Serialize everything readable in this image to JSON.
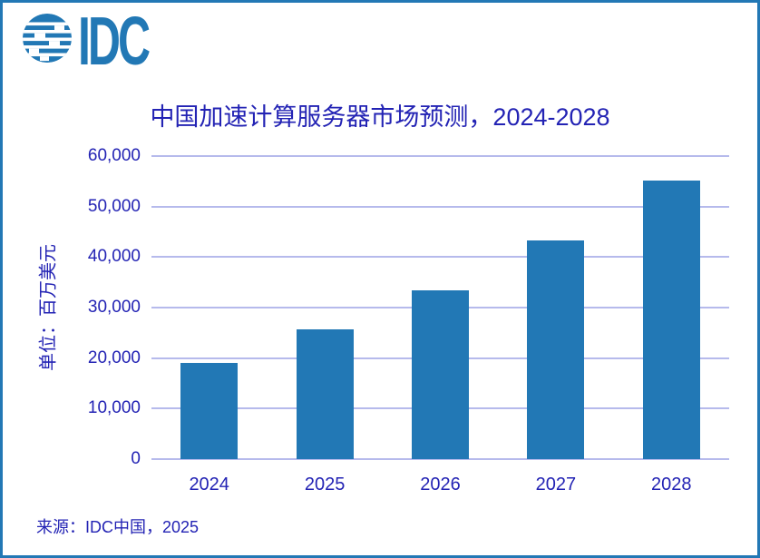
{
  "logo": {
    "text": "IDC",
    "globe_icon": "idc-globe-icon"
  },
  "footer": {
    "source": "来源：IDC中国，2025"
  },
  "colors": {
    "accent": "#2278B5",
    "bar": "#2278B5",
    "grid": "#B6BAEC",
    "text": "#2323B4",
    "border": "#2278B5"
  },
  "chart_data": {
    "type": "bar",
    "title": "中国加速计算服务器市场预测，2024-2028",
    "categories": [
      "2024",
      "2025",
      "2026",
      "2027",
      "2028"
    ],
    "values": [
      19000,
      25700,
      33500,
      43300,
      55200
    ],
    "xlabel": "",
    "ylabel": "单位：百万美元",
    "ylim": [
      0,
      60000
    ],
    "ytick_step": 10000,
    "ytick_labels": [
      "0",
      "10,000",
      "20,000",
      "30,000",
      "40,000",
      "50,000",
      "60,000"
    ],
    "grid": "horizontal-only",
    "legend": "none",
    "bar_color": "#2278B5",
    "source": "来源：IDC中国，2025"
  }
}
